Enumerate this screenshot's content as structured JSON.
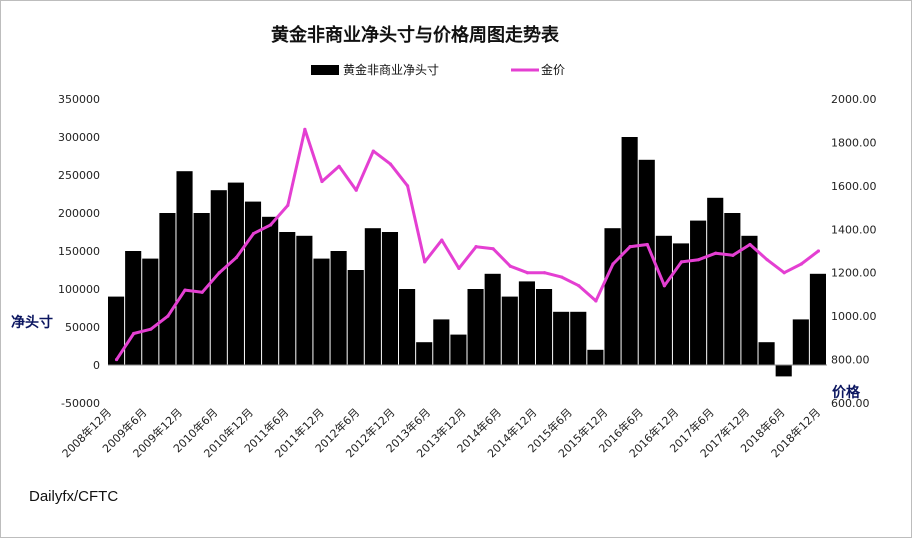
{
  "chart_data": {
    "type": "bar+line",
    "title": "黄金非商业净头寸与价格周图走势表",
    "source_note": "Dailyfx/CFTC",
    "legend_position": "top",
    "grid": false,
    "left_axis": {
      "label": "净头寸",
      "range": [
        -50000,
        350000
      ],
      "ticks": [
        "350000",
        "300000",
        "250000",
        "200000",
        "150000",
        "100000",
        "50000",
        "0",
        "-50000"
      ]
    },
    "right_axis": {
      "label": "价格",
      "range": [
        600,
        2000
      ],
      "ticks": [
        "2000.00",
        "1800.00",
        "1600.00",
        "1400.00",
        "1200.00",
        "1000.00",
        "800.00",
        "600.00"
      ]
    },
    "x_labels": [
      "2008年12月",
      "2009年6月",
      "2009年12月",
      "2010年6月",
      "2010年12月",
      "2011年6月",
      "2011年12月",
      "2012年6月",
      "2012年12月",
      "2013年6月",
      "2013年12月",
      "2014年6月",
      "2014年12月",
      "2015年6月",
      "2015年12月",
      "2016年6月",
      "2016年12月",
      "2017年6月",
      "2017年12月",
      "2018年6月",
      "2018年12月"
    ],
    "series": [
      {
        "name": "黄金非商业净头寸",
        "kind": "bar",
        "axis": "left",
        "color": "#000000",
        "x": [
          "2008年12月",
          "2009年3月",
          "2009年6月",
          "2009年9月",
          "2009年12月",
          "2010年3月",
          "2010年6月",
          "2010年9月",
          "2010年12月",
          "2011年3月",
          "2011年6月",
          "2011年9月",
          "2011年12月",
          "2012年3月",
          "2012年6月",
          "2012年9月",
          "2012年12月",
          "2013年3月",
          "2013年6月",
          "2013年9月",
          "2013年12月",
          "2014年3月",
          "2014年6月",
          "2014年9月",
          "2014年12月",
          "2015年3月",
          "2015年6月",
          "2015年9月",
          "2015年12月",
          "2016年3月",
          "2016年6月",
          "2016年9月",
          "2016年12月",
          "2017年3月",
          "2017年6月",
          "2017年9月",
          "2017年12月",
          "2018年3月",
          "2018年6月",
          "2018年9月",
          "2018年12月",
          "2019年3月"
        ],
        "values": [
          90000,
          150000,
          140000,
          200000,
          255000,
          200000,
          230000,
          240000,
          215000,
          195000,
          175000,
          170000,
          140000,
          150000,
          125000,
          180000,
          175000,
          100000,
          30000,
          60000,
          40000,
          100000,
          120000,
          90000,
          110000,
          100000,
          70000,
          70000,
          20000,
          180000,
          300000,
          270000,
          170000,
          160000,
          190000,
          220000,
          200000,
          170000,
          30000,
          -15000,
          60000,
          120000
        ]
      },
      {
        "name": "金价",
        "kind": "line",
        "axis": "right",
        "color": "#e43fd2",
        "x": [
          "2008年12月",
          "2009年3月",
          "2009年6月",
          "2009年9月",
          "2009年12月",
          "2010年3月",
          "2010年6月",
          "2010年9月",
          "2010年12月",
          "2011年3月",
          "2011年6月",
          "2011年9月",
          "2011年12月",
          "2012年3月",
          "2012年6月",
          "2012年9月",
          "2012年12月",
          "2013年3月",
          "2013年6月",
          "2013年9月",
          "2013年12月",
          "2014年3月",
          "2014年6月",
          "2014年9月",
          "2014年12月",
          "2015年3月",
          "2015年6月",
          "2015年9月",
          "2015年12月",
          "2016年3月",
          "2016年6月",
          "2016年9月",
          "2016年12月",
          "2017年3月",
          "2017年6月",
          "2017年9月",
          "2017年12月",
          "2018年3月",
          "2018年6月",
          "2018年9月",
          "2018年12月",
          "2019年3月"
        ],
        "values": [
          800,
          920,
          940,
          1000,
          1120,
          1110,
          1200,
          1270,
          1380,
          1420,
          1510,
          1860,
          1620,
          1690,
          1580,
          1760,
          1700,
          1600,
          1250,
          1350,
          1220,
          1320,
          1310,
          1230,
          1200,
          1200,
          1180,
          1140,
          1070,
          1240,
          1320,
          1330,
          1140,
          1250,
          1260,
          1290,
          1280,
          1330,
          1260,
          1200,
          1240,
          1300
        ]
      }
    ]
  }
}
